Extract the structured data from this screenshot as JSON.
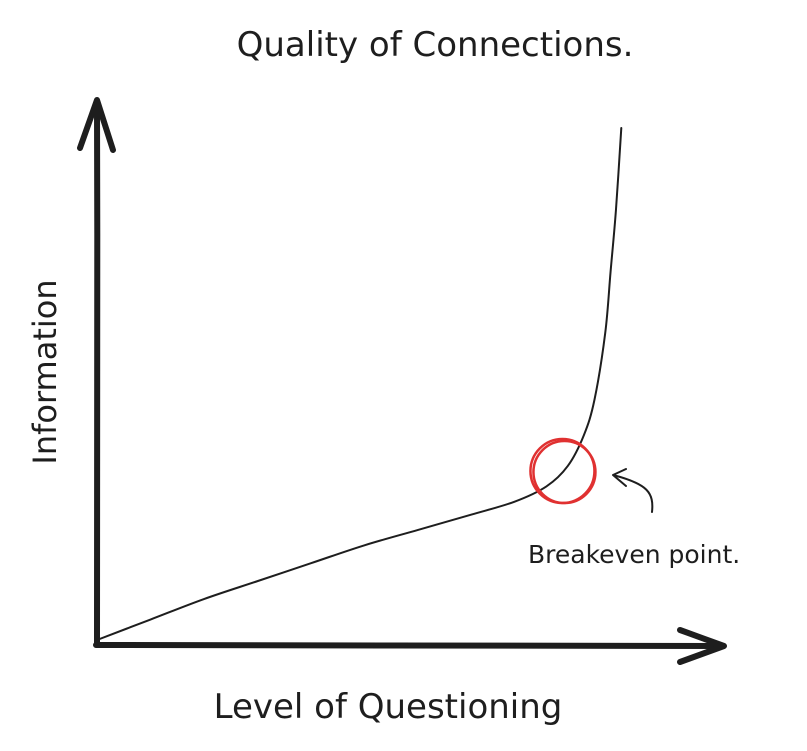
{
  "chart_data": {
    "type": "line",
    "title": "Quality of Connections.",
    "xlabel": "Level of Questioning",
    "ylabel": "Information",
    "grid": false,
    "legend": "none",
    "series": [
      {
        "points": [
          [
            0.0,
            0.0
          ],
          [
            0.1,
            0.04
          ],
          [
            0.2,
            0.08
          ],
          [
            0.3,
            0.115
          ],
          [
            0.4,
            0.15
          ],
          [
            0.5,
            0.185
          ],
          [
            0.6,
            0.215
          ],
          [
            0.7,
            0.245
          ],
          [
            0.78,
            0.27
          ],
          [
            0.84,
            0.3
          ],
          [
            0.88,
            0.34
          ],
          [
            0.91,
            0.4
          ],
          [
            0.93,
            0.47
          ],
          [
            0.95,
            0.6
          ],
          [
            0.96,
            0.72
          ],
          [
            0.97,
            0.84
          ],
          [
            0.98,
            1.0
          ]
        ]
      }
    ],
    "annotations": [
      {
        "text": "Breakeven point.",
        "point": [
          0.87,
          0.33
        ],
        "color": "#e03131"
      }
    ],
    "colors": {
      "ink": "#1e1e1e",
      "highlight": "#e03131"
    }
  }
}
